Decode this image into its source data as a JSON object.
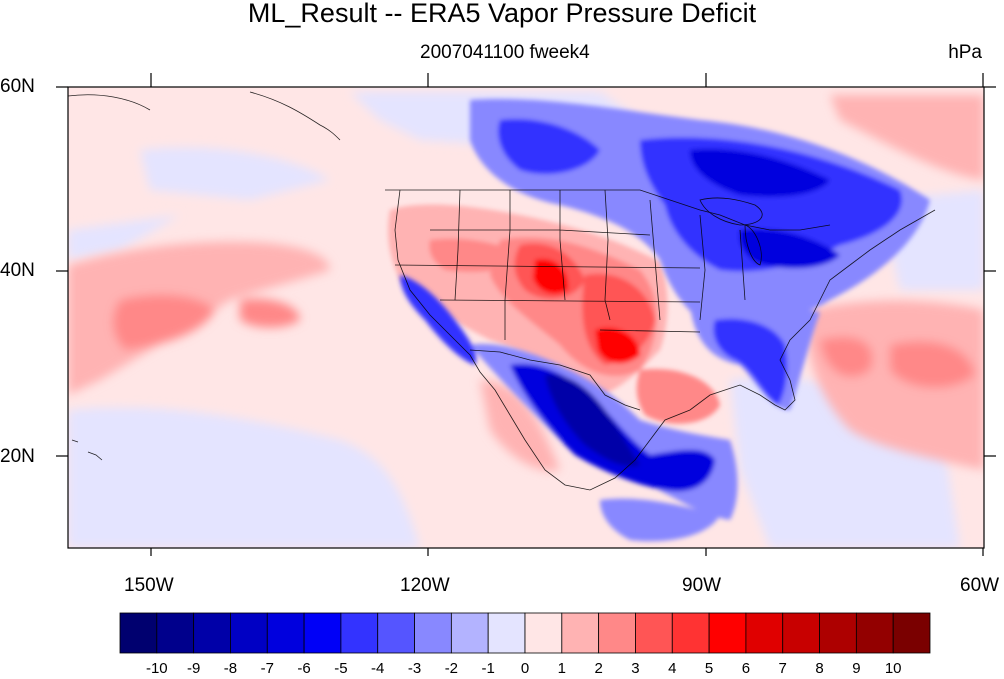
{
  "title": "ML_Result -- ERA5 Vapor Pressure Deficit",
  "subtitle": "2007041100 fweek4",
  "units": "hPa",
  "lat_labels": [
    "60N",
    "40N",
    "20N"
  ],
  "lon_labels": [
    "150W",
    "120W",
    "90W",
    "60W"
  ],
  "colorbar": {
    "labels": [
      "-10",
      "-9",
      "-8",
      "-7",
      "-6",
      "-5",
      "-4",
      "-3",
      "-2",
      "-1",
      "0",
      "1",
      "2",
      "3",
      "4",
      "5",
      "6",
      "7",
      "8",
      "9",
      "10"
    ],
    "colors": [
      "#00006f",
      "#00008c",
      "#0000a8",
      "#0000c4",
      "#0000de",
      "#0000f7",
      "#3333ff",
      "#5555ff",
      "#8888ff",
      "#b3b3ff",
      "#e4e4ff",
      "#ffe6e6",
      "#ffb3b3",
      "#ff8888",
      "#ff5555",
      "#ff3333",
      "#ff0000",
      "#e00000",
      "#c80000",
      "#ad0000",
      "#930000",
      "#7a0000"
    ]
  },
  "map_colors": {
    "background_pos_weak": "#ffe6e6",
    "ocean_neg_weak": "#e4e4ff",
    "pos_1": "#ffb3b3",
    "pos_2": "#ff8888",
    "pos_3": "#ff5555",
    "pos_4": "#ff0000",
    "neg_2": "#8888ff",
    "neg_4": "#3333ff",
    "neg_6": "#0000de",
    "neg_8": "#0000a8"
  }
}
